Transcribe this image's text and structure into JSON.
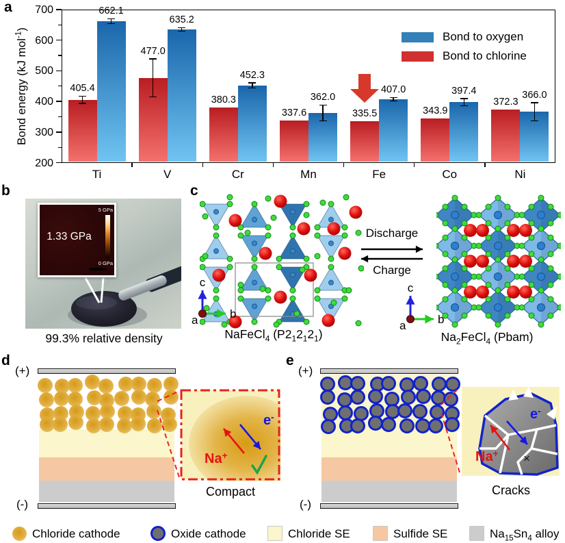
{
  "panel_labels": {
    "a": "a",
    "b": "b",
    "c": "c",
    "d": "d",
    "e": "e"
  },
  "chart_data": {
    "type": "bar",
    "categories": [
      "Ti",
      "V",
      "Cr",
      "Mn",
      "Fe",
      "Co",
      "Ni"
    ],
    "series": [
      {
        "name": "Bond to chlorine",
        "values": [
          405.4,
          477.0,
          380.3,
          337.6,
          335.5,
          343.9,
          372.3
        ],
        "labels": [
          "405.4",
          "477.0",
          "380.3",
          "337.6",
          "335.5",
          "343.9",
          "372.3"
        ],
        "errors": [
          12,
          62,
          0,
          0,
          0,
          0,
          0
        ],
        "color_top": "#b91d22",
        "color_bottom": "#f4716d"
      },
      {
        "name": "Bond to oxygen",
        "values": [
          662.1,
          635.2,
          452.3,
          362.0,
          407.0,
          397.4,
          366.0
        ],
        "labels": [
          "662.1",
          "635.2",
          "452.3",
          "362.0",
          "407.0",
          "397.4",
          "366.0"
        ],
        "errors": [
          8,
          6,
          8,
          26,
          6,
          12,
          30
        ],
        "color_top": "#1a66ab",
        "color_bottom": "#70c4f2"
      }
    ],
    "ylim": [
      200,
      700
    ],
    "yticks": [
      "200",
      "300",
      "400",
      "500",
      "600",
      "700"
    ],
    "ylabel_rich": [
      {
        "t": "Bond energy (kJ mol"
      },
      {
        "sup": "-1"
      },
      {
        "t": ")"
      }
    ],
    "legend": [
      {
        "label": "Bond to oxygen",
        "color": "#3380b8"
      },
      {
        "label": "Bond to chlorine",
        "color": "#d03030"
      }
    ],
    "annotation": {
      "type": "down-arrow",
      "category": "Fe",
      "series": "Bond to chlorine",
      "color": "#d6392b"
    },
    "grid": false,
    "legend_position": "upper-right"
  },
  "panel_b": {
    "inset_value": "1.33 GPa",
    "colorbar_top": "5 GPa",
    "colorbar_bottom": "0 GPa",
    "caption": "99.3% relative density"
  },
  "panel_c": {
    "left_caption_rich": [
      {
        "t": "NaFeCl"
      },
      {
        "sub": "4"
      },
      {
        "t": " (P2"
      },
      {
        "sub": "1"
      },
      {
        "t": "2"
      },
      {
        "sub": "1"
      },
      {
        "t": "2"
      },
      {
        "sub": "1"
      },
      {
        "t": ")"
      }
    ],
    "right_caption_rich": [
      {
        "t": "Na"
      },
      {
        "sub": "2"
      },
      {
        "t": "FeCl"
      },
      {
        "sub": "4"
      },
      {
        "t": " (Pbam)"
      }
    ],
    "discharge": "Discharge",
    "charge": "Charge",
    "axis": {
      "a": "a",
      "b": "b",
      "c": "c"
    }
  },
  "panel_d": {
    "plus": "(+)",
    "minus": "(-)",
    "na_rich": [
      {
        "t": "Na"
      },
      {
        "sup": "+"
      }
    ],
    "e_rich": [
      {
        "t": "e"
      },
      {
        "sup": "-"
      }
    ],
    "caption": "Compact"
  },
  "panel_e": {
    "plus": "(+)",
    "minus": "(-)",
    "na_rich": [
      {
        "t": "Na"
      },
      {
        "sup": "+"
      }
    ],
    "e_rich": [
      {
        "t": "e"
      },
      {
        "sup": "-"
      }
    ],
    "cross": "×",
    "caption": "Cracks"
  },
  "bottom_legend": {
    "items": [
      {
        "icon": "chloride-cathode-icon",
        "label_rich": [
          {
            "t": "Chloride cathode"
          }
        ]
      },
      {
        "icon": "oxide-cathode-icon",
        "label_rich": [
          {
            "t": "Oxide cathode"
          }
        ]
      },
      {
        "icon": "chloride-se-icon",
        "label_rich": [
          {
            "t": "Chloride SE"
          }
        ]
      },
      {
        "icon": "sulfide-se-icon",
        "label_rich": [
          {
            "t": "Sulfide SE"
          }
        ]
      },
      {
        "icon": "na15sn4-alloy-icon",
        "label_rich": [
          {
            "t": "Na"
          },
          {
            "sub": "15"
          },
          {
            "t": "Sn"
          },
          {
            "sub": "4"
          },
          {
            "t": " alloy"
          }
        ]
      }
    ]
  },
  "colors": {
    "bar_red_top": "#b91d22",
    "bar_red_bottom": "#f4716d",
    "bar_blue_top": "#1a66ab",
    "bar_blue_bottom": "#70c4f2",
    "legend_blue": "#3380b8",
    "legend_red": "#d03030",
    "annotation_arrow": "#d6392b",
    "inset_border_red": "#e8231a",
    "chloride_se": "#fbf6cb",
    "sulfide_se": "#f5c7a2",
    "alloy_gray": "#cccccc",
    "chloride_particle": "#d9a02b",
    "oxide_particle": "#6f6f6f",
    "oxide_ring": "#1122cc",
    "na_sphere": "#e01010",
    "cl_sphere": "#3ddc3d",
    "poly_blue_light": "#85bce4",
    "poly_blue_dark": "#3f86c2"
  }
}
